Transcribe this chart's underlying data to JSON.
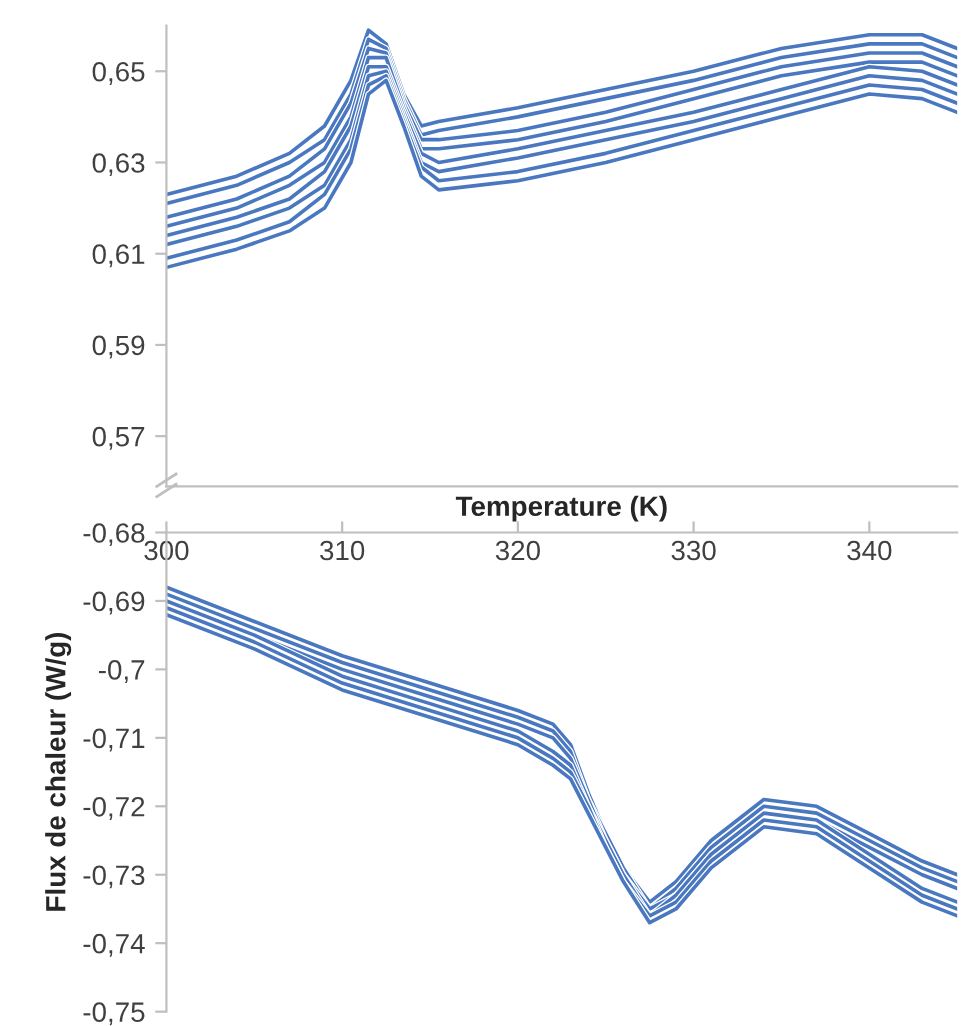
{
  "chart_data": [
    {
      "type": "line",
      "tick_labels": "y",
      "xlim": [
        300,
        345
      ],
      "ylim": [
        0.559,
        0.66
      ],
      "yticks": [
        {
          "value": 0.57,
          "label": "0,57"
        },
        {
          "value": 0.59,
          "label": "0,59"
        },
        {
          "value": 0.61,
          "label": "0,61"
        },
        {
          "value": 0.63,
          "label": "0,63"
        },
        {
          "value": 0.65,
          "label": "0,65"
        }
      ],
      "x": [
        300,
        304,
        307,
        309,
        310.5,
        311.5,
        312.5,
        313.5,
        314.5,
        315.5,
        320,
        325,
        330,
        335,
        340,
        343,
        345
      ],
      "series": [
        {
          "color": "#4a78c0",
          "values": [
            0.623,
            0.627,
            0.632,
            0.638,
            0.648,
            0.659,
            0.656,
            0.645,
            0.638,
            0.639,
            0.642,
            0.646,
            0.65,
            0.655,
            0.658,
            0.658,
            0.655
          ]
        },
        {
          "color": "#4a78c0",
          "values": [
            0.621,
            0.625,
            0.63,
            0.635,
            0.645,
            0.657,
            0.655,
            0.644,
            0.636,
            0.637,
            0.64,
            0.644,
            0.648,
            0.653,
            0.656,
            0.656,
            0.653
          ]
        },
        {
          "color": "#4a78c0",
          "values": [
            0.618,
            0.622,
            0.627,
            0.633,
            0.643,
            0.655,
            0.654,
            0.643,
            0.635,
            0.635,
            0.637,
            0.641,
            0.646,
            0.651,
            0.654,
            0.654,
            0.651
          ]
        },
        {
          "color": "#4a78c0",
          "values": [
            0.616,
            0.62,
            0.625,
            0.63,
            0.64,
            0.653,
            0.653,
            0.642,
            0.633,
            0.633,
            0.635,
            0.639,
            0.644,
            0.649,
            0.652,
            0.652,
            0.649
          ]
        },
        {
          "color": "#4a78c0",
          "values": [
            0.614,
            0.618,
            0.622,
            0.628,
            0.638,
            0.651,
            0.651,
            0.641,
            0.632,
            0.63,
            0.633,
            0.637,
            0.641,
            0.646,
            0.651,
            0.65,
            0.647
          ]
        },
        {
          "color": "#4a78c0",
          "values": [
            0.612,
            0.616,
            0.62,
            0.625,
            0.635,
            0.649,
            0.65,
            0.64,
            0.63,
            0.628,
            0.631,
            0.635,
            0.639,
            0.644,
            0.649,
            0.648,
            0.645
          ]
        },
        {
          "color": "#4a78c0",
          "values": [
            0.609,
            0.613,
            0.617,
            0.623,
            0.633,
            0.647,
            0.649,
            0.639,
            0.629,
            0.626,
            0.628,
            0.632,
            0.637,
            0.642,
            0.647,
            0.646,
            0.643
          ]
        },
        {
          "color": "#4a78c0",
          "values": [
            0.607,
            0.611,
            0.615,
            0.62,
            0.63,
            0.645,
            0.648,
            0.638,
            0.627,
            0.624,
            0.626,
            0.63,
            0.635,
            0.64,
            0.645,
            0.644,
            0.641
          ]
        }
      ]
    },
    {
      "type": "line",
      "xlabel": "Temperature (K)",
      "ylabel": "Flux de chaleur (W/g)",
      "xlim": [
        300,
        345
      ],
      "ylim": [
        -0.75,
        -0.68
      ],
      "xticks": [
        300,
        310,
        320,
        330,
        340
      ],
      "yticks": [
        {
          "value": -0.75,
          "label": "-0,75"
        },
        {
          "value": -0.74,
          "label": "-0,74"
        },
        {
          "value": -0.73,
          "label": "-0,73"
        },
        {
          "value": -0.72,
          "label": "-0,72"
        },
        {
          "value": -0.71,
          "label": "-0,71"
        },
        {
          "value": -0.7,
          "label": "-0,7"
        },
        {
          "value": -0.69,
          "label": "-0,69"
        },
        {
          "value": -0.68,
          "label": "-0,68"
        }
      ],
      "x": [
        300,
        305,
        310,
        315,
        320,
        322,
        323,
        324,
        325,
        326,
        327.5,
        329,
        331,
        334,
        337,
        340,
        343,
        345
      ],
      "series": [
        {
          "color": "#4a78c0",
          "values": [
            -0.688,
            -0.693,
            -0.698,
            -0.702,
            -0.706,
            -0.708,
            -0.711,
            -0.718,
            -0.724,
            -0.729,
            -0.734,
            -0.731,
            -0.725,
            -0.719,
            -0.72,
            -0.724,
            -0.728,
            -0.73
          ]
        },
        {
          "color": "#4a78c0",
          "values": [
            -0.689,
            -0.694,
            -0.699,
            -0.703,
            -0.707,
            -0.709,
            -0.712,
            -0.719,
            -0.724,
            -0.729,
            -0.735,
            -0.732,
            -0.726,
            -0.72,
            -0.721,
            -0.725,
            -0.729,
            -0.731
          ]
        },
        {
          "color": "#4a78c0",
          "values": [
            -0.69,
            -0.695,
            -0.7,
            -0.704,
            -0.708,
            -0.71,
            -0.713,
            -0.719,
            -0.725,
            -0.73,
            -0.735,
            -0.733,
            -0.727,
            -0.721,
            -0.722,
            -0.726,
            -0.73,
            -0.732
          ]
        },
        {
          "color": "#4a78c0",
          "values": [
            -0.69,
            -0.695,
            -0.701,
            -0.705,
            -0.709,
            -0.712,
            -0.714,
            -0.72,
            -0.725,
            -0.73,
            -0.736,
            -0.733,
            -0.727,
            -0.721,
            -0.722,
            -0.727,
            -0.732,
            -0.734
          ]
        },
        {
          "color": "#4a78c0",
          "values": [
            -0.691,
            -0.696,
            -0.702,
            -0.706,
            -0.71,
            -0.713,
            -0.715,
            -0.72,
            -0.726,
            -0.731,
            -0.736,
            -0.734,
            -0.728,
            -0.722,
            -0.723,
            -0.728,
            -0.733,
            -0.735
          ]
        },
        {
          "color": "#4a78c0",
          "values": [
            -0.692,
            -0.697,
            -0.703,
            -0.707,
            -0.711,
            -0.714,
            -0.716,
            -0.721,
            -0.726,
            -0.731,
            -0.737,
            -0.735,
            -0.729,
            -0.723,
            -0.724,
            -0.729,
            -0.734,
            -0.736
          ]
        }
      ]
    }
  ]
}
